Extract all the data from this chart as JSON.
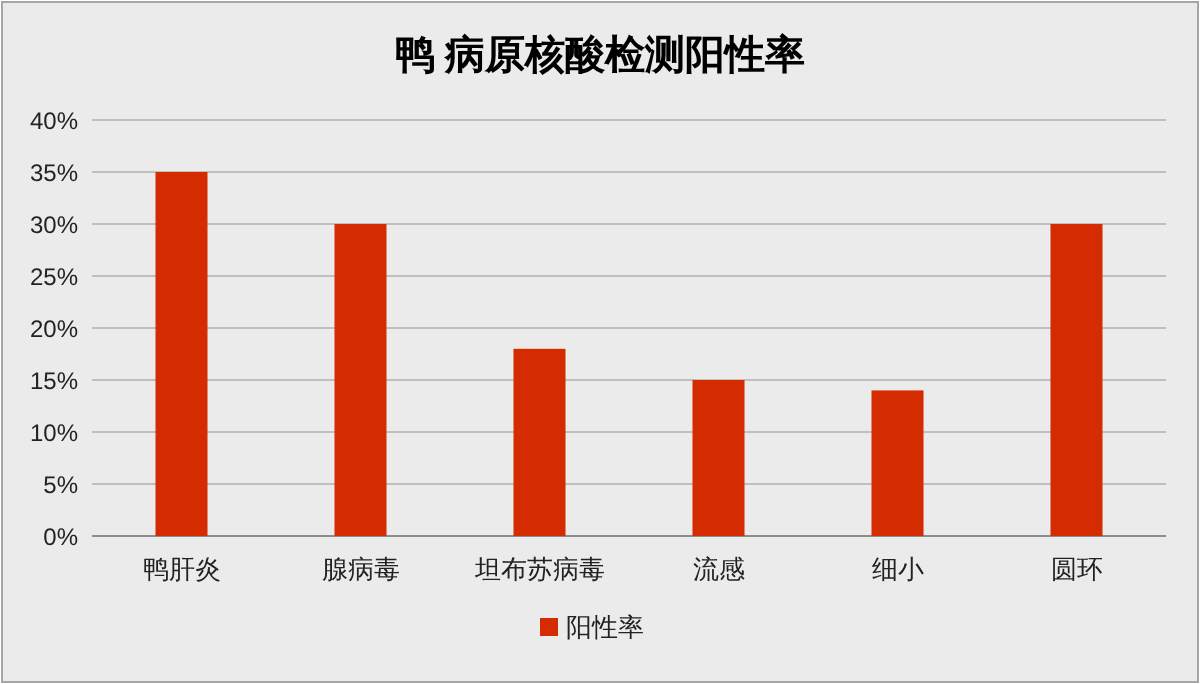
{
  "chart_data": {
    "type": "bar",
    "title": "鸭 病原核酸检测阳性率",
    "categories": [
      "鸭肝炎",
      "腺病毒",
      "坦布苏病毒",
      "流感",
      "细小",
      "圆环"
    ],
    "series": [
      {
        "name": "阳性率",
        "color": "#d52b00",
        "values": [
          35,
          30,
          18,
          15,
          14,
          30
        ]
      }
    ],
    "ylim": [
      0,
      40
    ],
    "yticks": [
      {
        "value": 0,
        "label": "0%"
      },
      {
        "value": 5,
        "label": "5%"
      },
      {
        "value": 10,
        "label": "10%"
      },
      {
        "value": 15,
        "label": "15%"
      },
      {
        "value": 20,
        "label": "20%"
      },
      {
        "value": 25,
        "label": "25%"
      },
      {
        "value": 30,
        "label": "30%"
      },
      {
        "value": 35,
        "label": "35%"
      },
      {
        "value": 40,
        "label": "40%"
      }
    ],
    "grid": "y",
    "legend": "bottom"
  }
}
